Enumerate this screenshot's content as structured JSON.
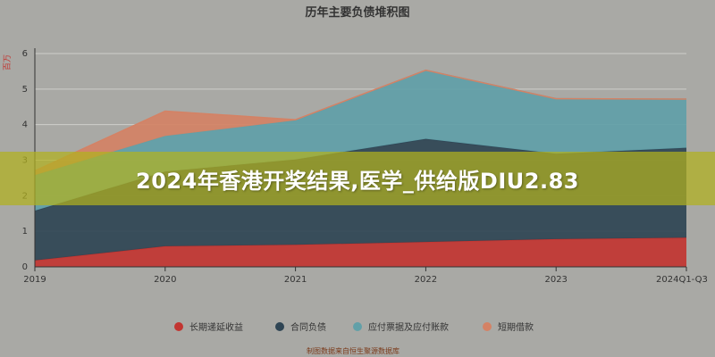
{
  "banner": {
    "text": "2024年香港开奖结果,医学_供给版DIU2.83"
  },
  "colors": {
    "background": "#a9a9a5"
  },
  "chart_data": {
    "type": "area",
    "stacked": true,
    "title": "历年主要负债堆积图",
    "ylabel": "百万",
    "categories": [
      "2019",
      "2020",
      "2021",
      "2022",
      "2023",
      "2024Q1-Q3"
    ],
    "y_ticks": [
      0,
      1,
      2,
      3,
      4,
      5,
      6
    ],
    "ylim": [
      0,
      6
    ],
    "grid": true,
    "legend_position": "bottom",
    "series": [
      {
        "name": "长期递延收益",
        "color": "#c23531",
        "values": [
          0.18,
          0.58,
          0.62,
          0.7,
          0.78,
          0.82
        ]
      },
      {
        "name": "合同负债",
        "color": "#2f4554",
        "values": [
          1.4,
          2.1,
          2.4,
          2.9,
          2.4,
          2.53
        ]
      },
      {
        "name": "应付票据及应付账款",
        "color": "#61a0a8",
        "values": [
          1.0,
          1.0,
          1.1,
          1.93,
          1.55,
          1.37
        ]
      },
      {
        "name": "短期借款",
        "color": "#d48265",
        "values": [
          0.12,
          0.7,
          0.02,
          0.0,
          0.0,
          0.0
        ]
      }
    ],
    "footnote": "制图数据来自恒生聚源数据库"
  }
}
